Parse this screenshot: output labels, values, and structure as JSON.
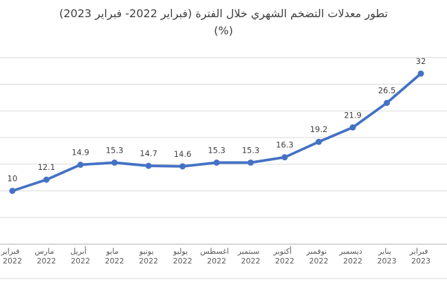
{
  "title": {
    "line1": "تطور معدلات التضخم الشهري خلال الفترة (فبراير 2022- فبراير 2023)",
    "line2": "(%)"
  },
  "colors": {
    "line": "#4472C4",
    "marker": "#4472C4",
    "gridline": "#D9D9D9",
    "axis_line": "#BFBFBF",
    "bottom_border": "#D9D9D9",
    "data_label": "#404040",
    "axis_label": "#595959",
    "title_text": "#3F3F3F"
  },
  "chart_data": {
    "type": "line",
    "title": "تطور معدلات التضخم الشهري خلال الفترة (فبراير 2022- فبراير 2023) (%)",
    "categories": [
      "فبراير 2022",
      "مارس 2022",
      "أبريل 2022",
      "مايو 2022",
      "يونيو 2022",
      "يوليو 2022",
      "اغسطس 2022",
      "سبتمبر 2022",
      "أكتوبر 2022",
      "نوفمبر 2022",
      "ديسمبر 2022",
      "يناير 2023",
      "فبراير 2023"
    ],
    "values": [
      10,
      12.1,
      14.9,
      15.3,
      14.7,
      14.6,
      15.3,
      15.3,
      16.3,
      19.2,
      21.9,
      26.5,
      32
    ],
    "point_labels": [
      "10",
      "12.1",
      "14.9",
      "15.3",
      "14.7",
      "14.6",
      "15.3",
      "15.3",
      "16.3",
      "19.2",
      "21.9",
      "26.5",
      "32"
    ],
    "xlabel": "",
    "ylabel": "",
    "ylim": [
      0,
      35
    ],
    "gridline_step": 5,
    "grid": "horizontal",
    "legend": "none",
    "y_axis_tick_labels_visible": false,
    "markers": "circle",
    "data_labels_position": "above"
  }
}
